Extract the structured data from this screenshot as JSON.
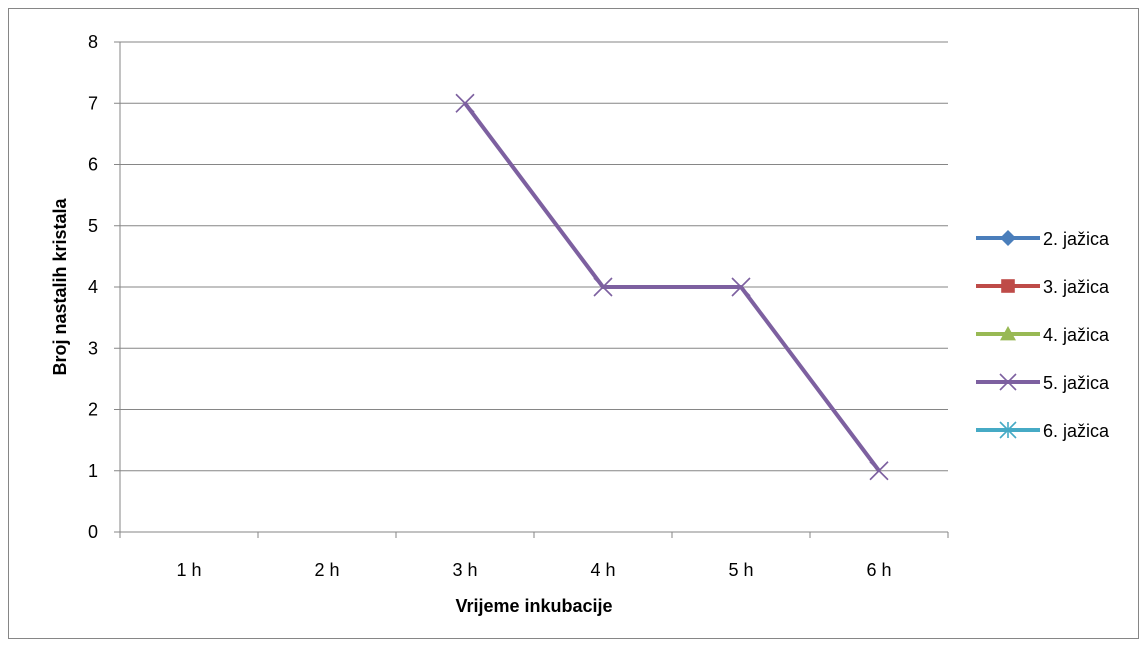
{
  "chart_data": {
    "type": "line",
    "title": "",
    "xlabel": "Vrijeme inkubacije",
    "ylabel": "Broj nastalih kristala",
    "categories": [
      "1 h",
      "2 h",
      "3 h",
      "4 h",
      "5 h",
      "6 h"
    ],
    "ylim": [
      0,
      8
    ],
    "yticks": [
      0,
      1,
      2,
      3,
      4,
      5,
      6,
      7,
      8
    ],
    "grid": "horizontal",
    "legend_position": "right",
    "series": [
      {
        "name": "2. jažica",
        "color": "#4a7ebb",
        "marker": "diamond",
        "values": [
          null,
          null,
          null,
          null,
          null,
          null
        ]
      },
      {
        "name": "3. jažica",
        "color": "#be4b48",
        "marker": "square",
        "values": [
          null,
          null,
          null,
          null,
          null,
          null
        ]
      },
      {
        "name": "4. jažica",
        "color": "#98b954",
        "marker": "triangle",
        "values": [
          null,
          null,
          null,
          null,
          null,
          null
        ]
      },
      {
        "name": "5. jažica",
        "color": "#7d60a0",
        "marker": "x",
        "values": [
          null,
          null,
          7,
          4,
          4,
          1
        ]
      },
      {
        "name": "6. jažica",
        "color": "#46aac5",
        "marker": "star",
        "values": [
          null,
          null,
          null,
          null,
          null,
          null
        ]
      }
    ]
  }
}
